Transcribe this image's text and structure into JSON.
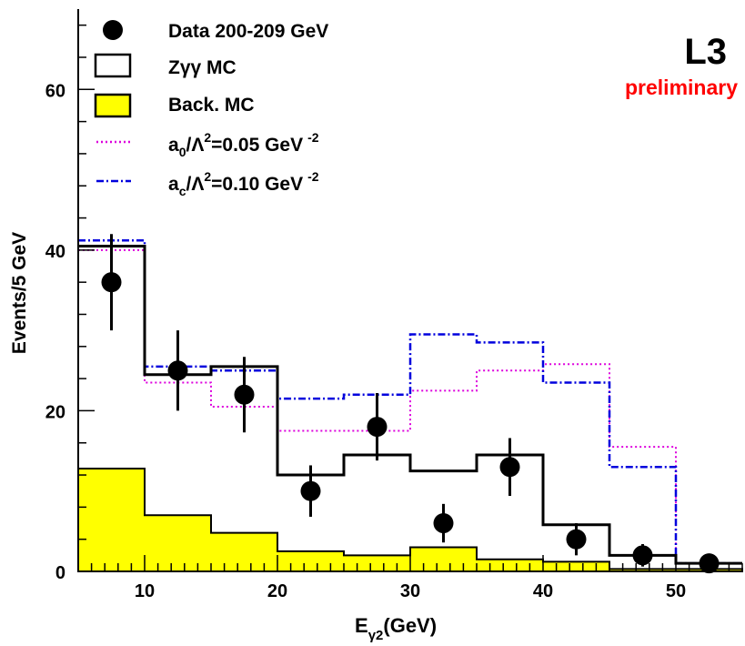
{
  "chart_data": {
    "type": "histogram",
    "xlabel": {
      "main": "E",
      "sub": "γ2",
      "unit": "(GeV)"
    },
    "ylabel": "Events/5 GeV",
    "xlim": [
      5,
      55
    ],
    "ylim": [
      0,
      70
    ],
    "xticks": [
      10,
      20,
      30,
      40,
      50
    ],
    "yticks": [
      0,
      20,
      40,
      60
    ],
    "experiment_label": "L3",
    "status_label": "preliminary",
    "bin_edges": [
      5,
      10,
      15,
      20,
      25,
      30,
      35,
      40,
      45,
      50,
      55
    ],
    "data": {
      "name": "Data 200-209 GeV",
      "x": [
        7.5,
        12.5,
        17.5,
        22.5,
        27.5,
        32.5,
        37.5,
        42.5,
        47.5,
        52.5
      ],
      "y": [
        36,
        25,
        22,
        10,
        18,
        6,
        13,
        4,
        2,
        1
      ],
      "err": [
        6,
        5,
        4.7,
        3.2,
        4.2,
        2.4,
        3.6,
        2,
        1.4,
        1
      ]
    },
    "series": [
      {
        "name": "Zγγ MC",
        "style": "solid",
        "color": "#000000",
        "values": [
          40.5,
          24.5,
          25.5,
          12,
          14.5,
          12.5,
          14.5,
          5.8,
          2,
          1
        ]
      },
      {
        "name": "Back. MC",
        "style": "filled",
        "color": "#ffff00",
        "values": [
          12.8,
          7,
          4.8,
          2.5,
          2,
          3,
          1.5,
          1.2,
          0.3,
          0.3
        ]
      },
      {
        "name": "a0/Λ²=0.05 GeV⁻²",
        "style": "dotted",
        "color": "#dd00dd",
        "values": [
          40,
          23.5,
          20.5,
          17.5,
          17.5,
          22.5,
          25,
          25.8,
          15.5,
          1
        ]
      },
      {
        "name": "ac/Λ²=0.10 GeV⁻²",
        "style": "dashdot",
        "color": "#0000dd",
        "values": [
          41.2,
          25.5,
          25,
          21.5,
          22,
          29.5,
          28.5,
          23.5,
          13,
          1
        ]
      }
    ],
    "legend": [
      {
        "marker": "circle",
        "text": "Data 200-209 GeV"
      },
      {
        "marker": "box-open",
        "text": "Zγγ MC"
      },
      {
        "marker": "box-filled",
        "text": "Back. MC"
      },
      {
        "marker": "line-dotted",
        "text_main": "a",
        "text_sub": "0",
        "text_mid": "/Λ",
        "text_sup": "2",
        "text_tail": "=0.05 GeV",
        "text_sup2": "-2"
      },
      {
        "marker": "line-dashdot",
        "text_main": "a",
        "text_sub": "c",
        "text_mid": "/Λ",
        "text_sup": "2",
        "text_tail": "=0.10 GeV",
        "text_sup2": "-2"
      }
    ],
    "legend_position": "top-left",
    "grid": false
  }
}
